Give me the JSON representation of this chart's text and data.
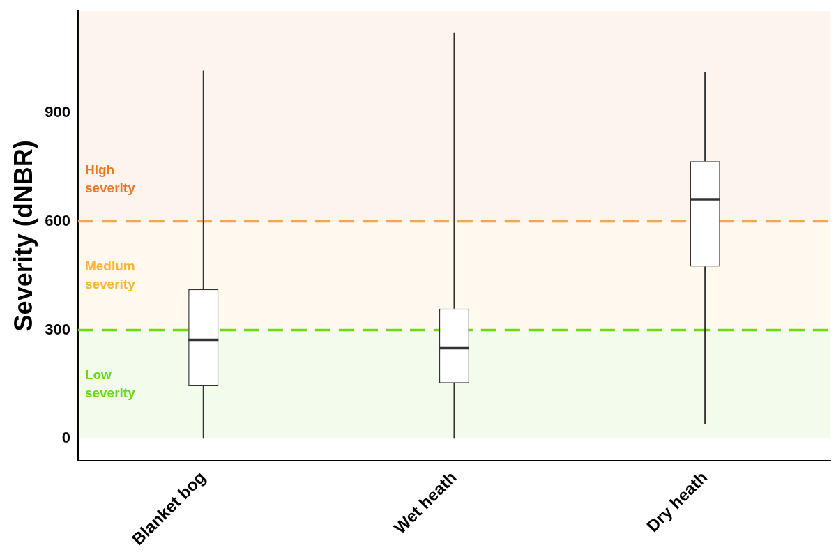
{
  "chart_data": {
    "type": "box",
    "ylabel": "Severity (dNBR)",
    "categories": [
      "Blanket bog",
      "Wet heath",
      "Dry heath"
    ],
    "boxes": [
      {
        "low": 0,
        "q1": 145,
        "median": 273,
        "q3": 413,
        "high": 1016
      },
      {
        "low": 0,
        "q1": 153,
        "median": 250,
        "q3": 359,
        "high": 1121
      },
      {
        "low": 41,
        "q1": 475,
        "median": 661,
        "q3": 766,
        "high": 1013
      }
    ],
    "ylim": [
      -60,
      1180
    ],
    "yticks": [
      0,
      300,
      600,
      900
    ],
    "grid": false,
    "legend": false,
    "ref_lines": [
      {
        "axis": "y",
        "value": 300,
        "color": "#66dd11",
        "line_style": "dashed"
      },
      {
        "axis": "y",
        "value": 600,
        "color": "#f9a94f",
        "line_style": "dashed"
      }
    ],
    "bands": [
      {
        "axis": "y",
        "from": 0,
        "to": 300,
        "label": "Low severity",
        "color": "#66dd11"
      },
      {
        "axis": "y",
        "from": 300,
        "to": 600,
        "label": "Medium severity",
        "color": "#fdb431"
      },
      {
        "axis": "y",
        "from": 600,
        "to": 1180,
        "label": "High severity",
        "color": "#ee7722"
      }
    ]
  }
}
